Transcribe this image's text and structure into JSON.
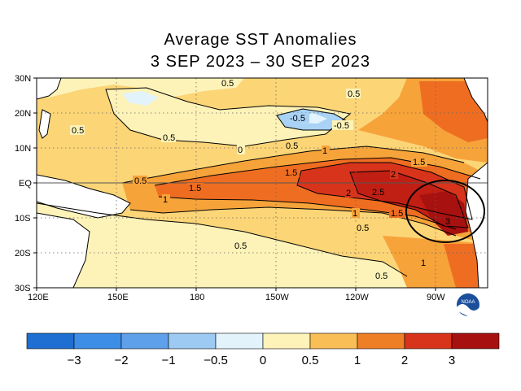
{
  "title": {
    "line1": "Average SST Anomalies",
    "line2": "3 SEP 2023 – 30 SEP 2023"
  },
  "map": {
    "lat_labels": [
      "30N",
      "20N",
      "10N",
      "EQ",
      "10S",
      "20S",
      "30S"
    ],
    "lon_labels": [
      "120E",
      "150E",
      "180",
      "150W",
      "120W",
      "90W"
    ],
    "contour_labels": [
      "0.5",
      "0.5",
      "0.5",
      "-0.5",
      "-0.5",
      "0.5",
      "0",
      "0.5",
      "1",
      "1.5",
      "0.5",
      "1.5",
      "1.5",
      "2",
      "1",
      "2",
      "2.5",
      "1",
      "1.5",
      "3",
      "0.5",
      "0.5",
      "1",
      "0.5"
    ],
    "highlight": "ellipse near South American coast",
    "colors": {
      "neg3": "#1e6fd1",
      "neg2": "#3d8ee6",
      "neg1": "#76b3ee",
      "neg05": "#a9d2f4",
      "zero": "#e3f3fb",
      "pos0": "#fdf3b8",
      "pos05": "#fccf63",
      "pos1": "#f6a33a",
      "pos15": "#ef6d21",
      "pos2": "#d8331b",
      "pos3": "#a7110f",
      "land": "#ffffff"
    }
  },
  "colorbar": {
    "ticks": [
      "−3",
      "−2",
      "−1",
      "−0.5",
      "0",
      "0.5",
      "1",
      "2",
      "3"
    ],
    "colors": [
      "#1e6fd1",
      "#3d8ee6",
      "#5ea1ea",
      "#9ccaf2",
      "#e3f3fb",
      "#fdf3b8",
      "#f9be55",
      "#ef7f27",
      "#d8331b",
      "#a7110f"
    ]
  },
  "logo": {
    "text": "NOAA"
  }
}
